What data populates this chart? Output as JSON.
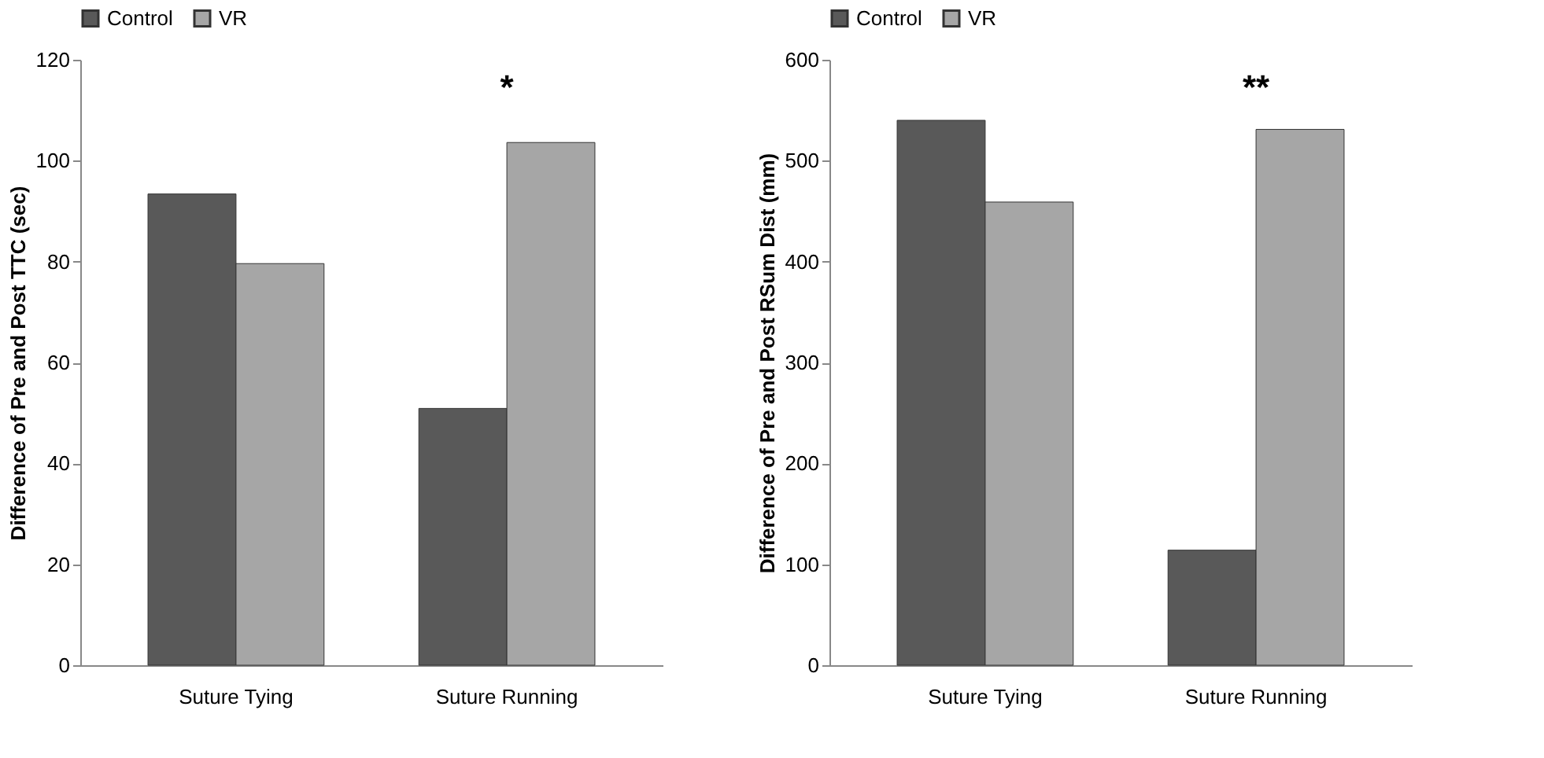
{
  "chart_data": [
    {
      "type": "bar",
      "ylabel": "Difference of Pre and Post TTC (sec)",
      "categories": [
        "Suture Tying",
        "Suture Running"
      ],
      "series": [
        {
          "name": "Control",
          "color": "#595959",
          "values": [
            93.4,
            50.9
          ]
        },
        {
          "name": "VR",
          "color": "#a6a6a6",
          "values": [
            79.6,
            103.6
          ]
        }
      ],
      "ylim": [
        0,
        120
      ],
      "yticks": [
        0,
        20,
        40,
        60,
        80,
        100,
        120
      ],
      "grid": false,
      "legend": "top",
      "annotations": [
        "*"
      ]
    },
    {
      "type": "bar",
      "ylabel": "Difference of Pre and Post RSum Dist (mm)",
      "categories": [
        "Suture Tying",
        "Suture Running"
      ],
      "series": [
        {
          "name": "Control",
          "color": "#595959",
          "values": [
            540,
            114
          ]
        },
        {
          "name": "VR",
          "color": "#a6a6a6",
          "values": [
            459,
            531
          ]
        }
      ],
      "ylim": [
        0,
        600
      ],
      "yticks": [
        0,
        100,
        200,
        300,
        400,
        500,
        600
      ],
      "grid": false,
      "legend": "top",
      "annotations": [
        "**"
      ]
    }
  ]
}
